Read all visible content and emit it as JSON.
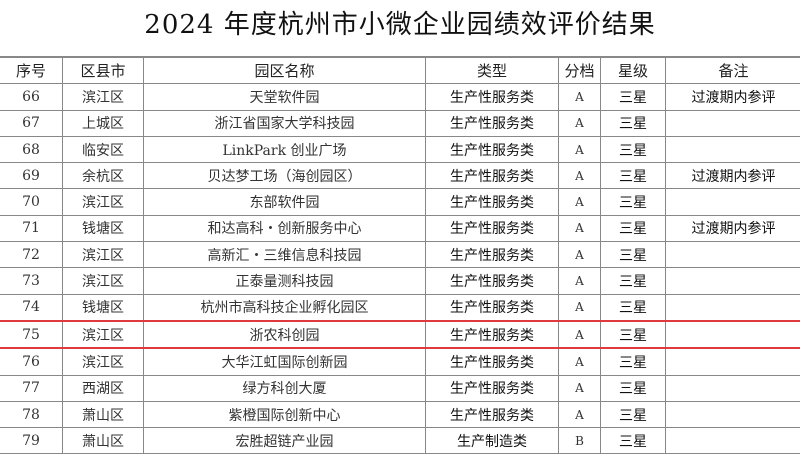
{
  "title": "2024 年度杭州市小微企业园绩效评价结果",
  "headers": [
    "序号",
    "区县市",
    "园区名称",
    "类型",
    "分档",
    "星级",
    "备注"
  ],
  "highlight_color": "#e0393e",
  "highlighted_row": "75",
  "rows": [
    [
      "66",
      "滨江区",
      "天堂软件园",
      "生产性服务类",
      "A",
      "三星",
      "过渡期内参评"
    ],
    [
      "67",
      "上城区",
      "浙江省国家大学科技园",
      "生产性服务类",
      "A",
      "三星",
      ""
    ],
    [
      "68",
      "临安区",
      "LinkPark 创业广场",
      "生产性服务类",
      "A",
      "三星",
      ""
    ],
    [
      "69",
      "余杭区",
      "贝达梦工场（海创园区）",
      "生产性服务类",
      "A",
      "三星",
      "过渡期内参评"
    ],
    [
      "70",
      "滨江区",
      "东部软件园",
      "生产性服务类",
      "A",
      "三星",
      ""
    ],
    [
      "71",
      "钱塘区",
      "和达高科・创新服务中心",
      "生产性服务类",
      "A",
      "三星",
      "过渡期内参评"
    ],
    [
      "72",
      "滨江区",
      "高新汇・三维信息科技园",
      "生产性服务类",
      "A",
      "三星",
      ""
    ],
    [
      "73",
      "滨江区",
      "正泰量测科技园",
      "生产性服务类",
      "A",
      "三星",
      ""
    ],
    [
      "74",
      "钱塘区",
      "杭州市高科技企业孵化园区",
      "生产性服务类",
      "A",
      "三星",
      ""
    ],
    [
      "75",
      "滨江区",
      "浙农科创园",
      "生产性服务类",
      "A",
      "三星",
      ""
    ],
    [
      "76",
      "滨江区",
      "大华江虹国际创新园",
      "生产性服务类",
      "A",
      "三星",
      ""
    ],
    [
      "77",
      "西湖区",
      "绿方科创大厦",
      "生产性服务类",
      "A",
      "三星",
      ""
    ],
    [
      "78",
      "萧山区",
      "紫橙国际创新中心",
      "生产性服务类",
      "A",
      "三星",
      ""
    ],
    [
      "79",
      "萧山区",
      "宏胜超链产业园",
      "生产制造类",
      "B",
      "三星",
      ""
    ]
  ]
}
